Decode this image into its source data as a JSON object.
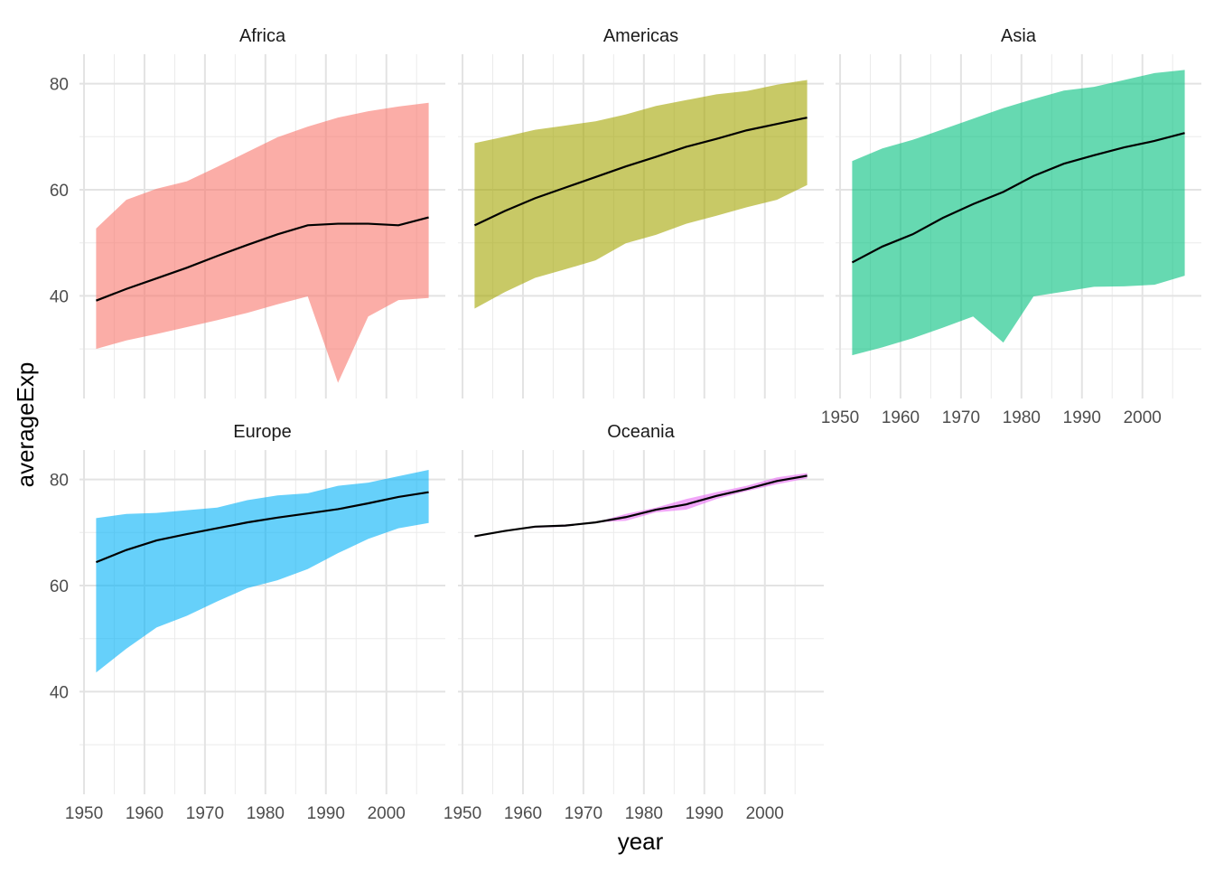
{
  "chart_data": {
    "type": "area",
    "facet": "continent",
    "xlabel": "year",
    "ylabel": "averageExp",
    "x": [
      1952,
      1957,
      1962,
      1967,
      1972,
      1977,
      1982,
      1987,
      1992,
      1997,
      2002,
      2007
    ],
    "xlim": [
      1949.25,
      2009.75
    ],
    "ylim": [
      20.65,
      85.55
    ],
    "x_ticks": [
      "1950",
      "1960",
      "1970",
      "1980",
      "1990",
      "2000"
    ],
    "y_ticks": [
      "40",
      "60",
      "80"
    ],
    "grid": true,
    "ribbon_alpha": 0.6,
    "panels": [
      {
        "name": "Africa",
        "color": "#F8766D",
        "mean": [
          39.1,
          41.3,
          43.3,
          45.3,
          47.5,
          49.6,
          51.6,
          53.3,
          53.6,
          53.6,
          53.3,
          54.8
        ],
        "min": [
          30.0,
          31.6,
          32.8,
          34.1,
          35.4,
          36.8,
          38.4,
          39.9,
          23.6,
          36.1,
          39.2,
          39.6
        ],
        "max": [
          52.7,
          58.1,
          60.2,
          61.6,
          64.3,
          67.1,
          69.9,
          71.9,
          73.6,
          74.8,
          75.7,
          76.4
        ]
      },
      {
        "name": "Americas",
        "color": "#A3A500",
        "mean": [
          53.3,
          56.0,
          58.4,
          60.4,
          62.4,
          64.4,
          66.2,
          68.1,
          69.6,
          71.2,
          72.4,
          73.6
        ],
        "min": [
          37.6,
          40.7,
          43.4,
          45.0,
          46.7,
          49.9,
          51.5,
          53.6,
          55.1,
          56.7,
          58.1,
          60.9
        ],
        "max": [
          68.8,
          70.0,
          71.3,
          72.1,
          72.9,
          74.2,
          75.8,
          76.9,
          78.0,
          78.6,
          79.8,
          80.7
        ]
      },
      {
        "name": "Asia",
        "color": "#00BF7D",
        "mean": [
          46.3,
          49.3,
          51.6,
          54.7,
          57.3,
          59.6,
          62.6,
          64.9,
          66.5,
          68.0,
          69.2,
          70.7
        ],
        "min": [
          28.8,
          30.3,
          32.0,
          34.0,
          36.1,
          31.2,
          39.9,
          40.8,
          41.7,
          41.8,
          42.1,
          43.8
        ],
        "max": [
          65.4,
          67.8,
          69.4,
          71.4,
          73.4,
          75.4,
          77.1,
          78.7,
          79.4,
          80.7,
          82.0,
          82.6
        ]
      },
      {
        "name": "Europe",
        "color": "#00B0F6",
        "mean": [
          64.4,
          66.7,
          68.5,
          69.7,
          70.8,
          71.9,
          72.8,
          73.6,
          74.4,
          75.5,
          76.7,
          77.6
        ],
        "min": [
          43.6,
          48.1,
          52.1,
          54.3,
          57.0,
          59.5,
          61.0,
          63.1,
          66.1,
          68.8,
          70.8,
          71.8
        ],
        "max": [
          72.7,
          73.5,
          73.7,
          74.2,
          74.7,
          76.1,
          77.0,
          77.4,
          78.8,
          79.4,
          80.6,
          81.8
        ]
      },
      {
        "name": "Oceania",
        "color": "#E76BF3",
        "mean": [
          69.3,
          70.3,
          71.1,
          71.3,
          71.9,
          72.9,
          74.3,
          75.3,
          76.9,
          78.2,
          79.7,
          80.7
        ],
        "min": [
          69.1,
          70.3,
          70.9,
          71.1,
          71.9,
          72.2,
          73.8,
          74.3,
          76.3,
          77.8,
          79.1,
          80.2
        ],
        "max": [
          69.4,
          70.3,
          71.2,
          71.5,
          71.9,
          73.5,
          74.7,
          76.3,
          77.6,
          78.8,
          80.4,
          81.2
        ]
      }
    ]
  }
}
